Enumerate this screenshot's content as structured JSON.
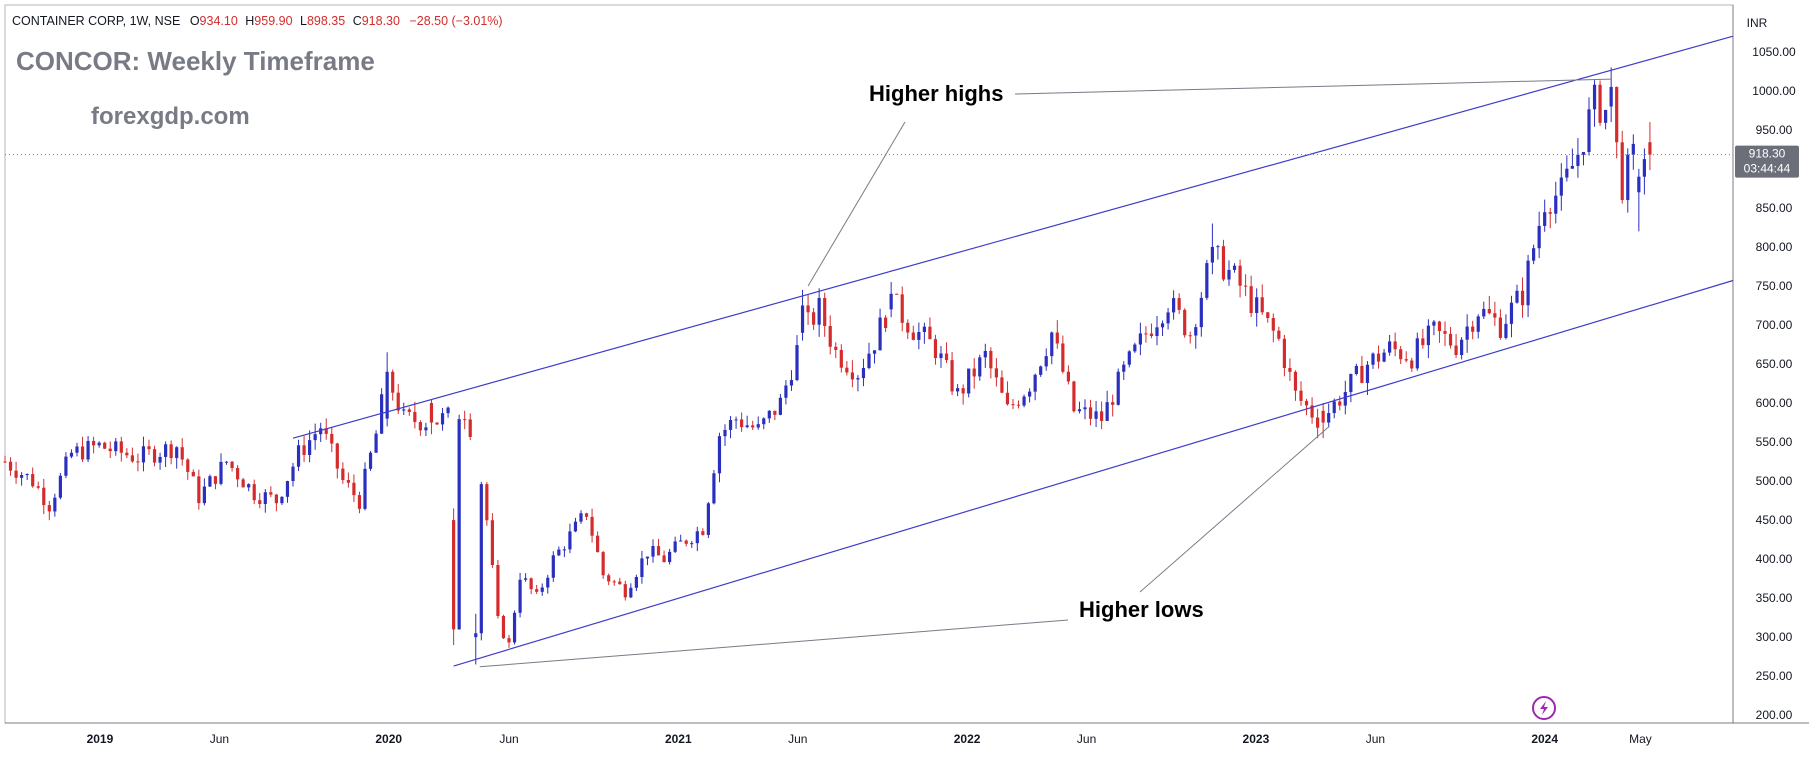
{
  "header": {
    "symbol_line": "CONTAINER CORP, 1W, NSE",
    "open_label": "O",
    "open": "934.10",
    "high_label": "H",
    "high": "959.90",
    "low_label": "L",
    "low": "898.35",
    "close_label": "C",
    "close": "918.30",
    "change": "−28.50 (−3.01%)"
  },
  "overlay": {
    "title": "CONCOR: Weekly Timeframe",
    "site": "forexgdp.com"
  },
  "currency": "INR",
  "last_price": {
    "value": "918.30",
    "countdown": "03:44:44"
  },
  "annotations": {
    "higher_highs": "Higher highs",
    "higher_lows": "Higher lows"
  },
  "colors": {
    "up": "#2a2fbd",
    "down": "#d42c2c",
    "channel": "#3d3dcc",
    "pointer": "#787b86",
    "price_tag_bg": "#6c6f7a",
    "grid": "#e0e3eb"
  },
  "icons": [
    "lightning-icon"
  ],
  "chart_data": {
    "type": "candlestick",
    "title": "CONCOR: Weekly Timeframe",
    "interval": "1W",
    "exchange": "NSE",
    "currency": "INR",
    "ylim": [
      190,
      1110
    ],
    "y_ticks": [
      1050,
      1000,
      950,
      900,
      850,
      800,
      750,
      700,
      650,
      600,
      550,
      500,
      450,
      400,
      350,
      300,
      250,
      200
    ],
    "xlim": [
      "2018-09-03",
      "2024-08-26"
    ],
    "x_ticks": [
      {
        "label": "2019",
        "date": "2019-01-01",
        "bold": true
      },
      {
        "label": "Jun",
        "date": "2019-06-01",
        "bold": false
      },
      {
        "label": "2020",
        "date": "2020-01-01",
        "bold": true
      },
      {
        "label": "Jun",
        "date": "2020-06-01",
        "bold": false
      },
      {
        "label": "2021",
        "date": "2021-01-01",
        "bold": true
      },
      {
        "label": "Jun",
        "date": "2021-06-01",
        "bold": false
      },
      {
        "label": "2022",
        "date": "2022-01-01",
        "bold": true
      },
      {
        "label": "Jun",
        "date": "2022-06-01",
        "bold": false
      },
      {
        "label": "2023",
        "date": "2023-01-01",
        "bold": true
      },
      {
        "label": "Jun",
        "date": "2023-06-01",
        "bold": false
      },
      {
        "label": "2024",
        "date": "2024-01-01",
        "bold": true
      },
      {
        "label": "May",
        "date": "2024-05-01",
        "bold": false
      }
    ],
    "price_path": [
      [
        "2018-09-03",
        525
      ],
      [
        "2018-10-08",
        500
      ],
      [
        "2018-10-29",
        470
      ],
      [
        "2018-11-26",
        535
      ],
      [
        "2018-12-31",
        545
      ],
      [
        "2019-02-18",
        530
      ],
      [
        "2019-04-08",
        545
      ],
      [
        "2019-05-06",
        480
      ],
      [
        "2019-06-10",
        525
      ],
      [
        "2019-07-15",
        485
      ],
      [
        "2019-08-12",
        475
      ],
      [
        "2019-09-09",
        535
      ],
      [
        "2019-10-07",
        570
      ],
      [
        "2019-11-04",
        500
      ],
      [
        "2019-11-25",
        475
      ],
      [
        "2019-12-16",
        560
      ],
      [
        "2019-12-30",
        635
      ],
      [
        "2020-01-20",
        580
      ],
      [
        "2020-02-24",
        575
      ],
      [
        "2020-04-06",
        590
      ],
      [
        "2020-04-20",
        550
      ],
      [
        "2020-05-04",
        450
      ],
      [
        "2020-05-18",
        320
      ],
      [
        "2020-06-01",
        290
      ],
      [
        "2020-06-15",
        380
      ],
      [
        "2020-07-06",
        350
      ],
      [
        "2020-07-27",
        400
      ],
      [
        "2020-08-17",
        430
      ],
      [
        "2020-09-07",
        460
      ],
      [
        "2020-09-28",
        380
      ],
      [
        "2020-10-26",
        360
      ],
      [
        "2020-11-23",
        410
      ],
      [
        "2020-12-14",
        400
      ],
      [
        "2021-01-04",
        420
      ],
      [
        "2021-02-01",
        440
      ],
      [
        "2021-02-22",
        560
      ],
      [
        "2021-03-15",
        580
      ],
      [
        "2021-04-12",
        565
      ],
      [
        "2021-05-10",
        600
      ],
      [
        "2021-06-07",
        690
      ],
      [
        "2021-06-28",
        720
      ],
      [
        "2021-07-19",
        665
      ],
      [
        "2021-08-16",
        640
      ],
      [
        "2021-09-06",
        680
      ],
      [
        "2021-09-27",
        730
      ],
      [
        "2021-10-25",
        695
      ],
      [
        "2021-11-22",
        670
      ],
      [
        "2021-12-20",
        610
      ],
      [
        "2022-01-24",
        660
      ],
      [
        "2022-02-21",
        590
      ],
      [
        "2022-03-21",
        625
      ],
      [
        "2022-04-18",
        690
      ],
      [
        "2022-05-16",
        590
      ],
      [
        "2022-06-20",
        580
      ],
      [
        "2022-07-18",
        640
      ],
      [
        "2022-08-15",
        690
      ],
      [
        "2022-09-12",
        730
      ],
      [
        "2022-10-10",
        690
      ],
      [
        "2022-11-07",
        790
      ],
      [
        "2022-12-05",
        760
      ],
      [
        "2023-01-02",
        720
      ],
      [
        "2023-01-30",
        680
      ],
      [
        "2023-02-20",
        610
      ],
      [
        "2023-03-20",
        580
      ],
      [
        "2023-04-03",
        590
      ],
      [
        "2023-04-24",
        615
      ],
      [
        "2023-05-22",
        650
      ],
      [
        "2023-06-19",
        670
      ],
      [
        "2023-07-17",
        660
      ],
      [
        "2023-08-14",
        690
      ],
      [
        "2023-09-11",
        675
      ],
      [
        "2023-10-09",
        720
      ],
      [
        "2023-11-06",
        700
      ],
      [
        "2023-12-04",
        740
      ],
      [
        "2024-01-01",
        860
      ],
      [
        "2024-01-22",
        870
      ],
      [
        "2024-02-12",
        920
      ],
      [
        "2024-03-04",
        985
      ],
      [
        "2024-03-25",
        970
      ],
      [
        "2024-04-08",
        880
      ],
      [
        "2024-04-29",
        930
      ],
      [
        "2024-05-13",
        918
      ]
    ],
    "candles": [
      [
        "2019-12-30",
        580,
        665,
        570,
        640
      ],
      [
        "2020-02-24",
        600,
        605,
        560,
        575
      ],
      [
        "2020-03-23",
        450,
        465,
        290,
        310
      ],
      [
        "2020-04-20",
        300,
        330,
        265,
        305
      ],
      [
        "2021-06-07",
        690,
        745,
        680,
        725
      ],
      [
        "2021-09-27",
        720,
        755,
        710,
        740
      ],
      [
        "2022-11-07",
        780,
        830,
        765,
        800
      ],
      [
        "2023-03-27",
        590,
        600,
        555,
        575
      ],
      [
        "2024-03-25",
        980,
        1030,
        960,
        1005
      ],
      [
        "2024-04-29",
        870,
        900,
        820,
        890
      ],
      [
        "2024-05-13",
        934.1,
        959.9,
        898.35,
        918.3
      ]
    ],
    "trendlines": [
      {
        "name": "upper-channel",
        "points": [
          [
            "2019-09-02",
            555
          ],
          [
            "2024-08-26",
            1070
          ]
        ]
      },
      {
        "name": "lower-channel",
        "points": [
          [
            "2020-03-23",
            263
          ],
          [
            "2024-08-26",
            757
          ]
        ]
      }
    ],
    "annotation_points": {
      "higher_highs_targets": [
        [
          "2021-06-14",
          750
        ],
        [
          "2024-03-25",
          1015
        ]
      ],
      "higher_lows_targets": [
        [
          "2020-04-06",
          262
        ],
        [
          "2023-04-10",
          570
        ]
      ]
    },
    "last_price": 918.3
  }
}
